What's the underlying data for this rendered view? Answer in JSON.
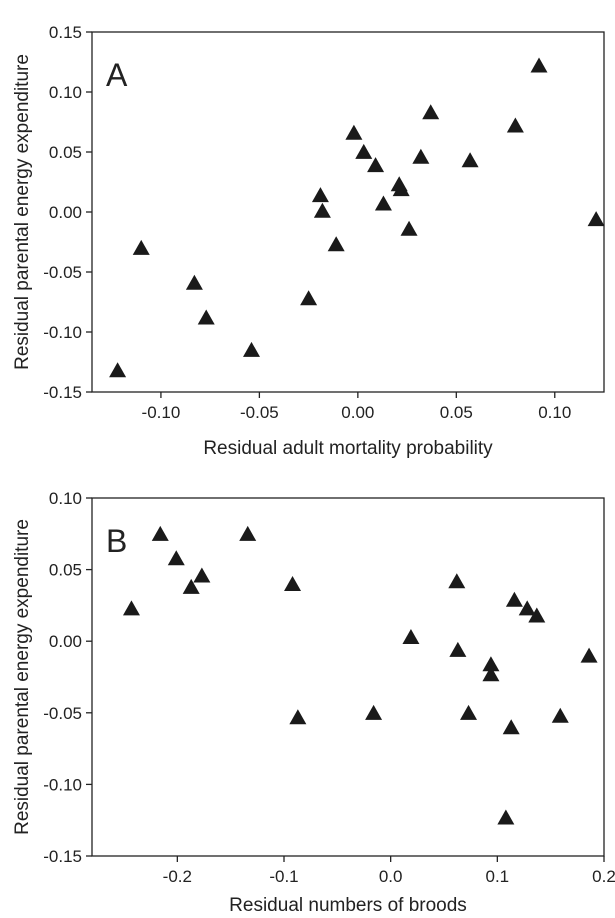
{
  "chart_data": [
    {
      "type": "scatter",
      "panel_label": "A",
      "xlabel": "Residual adult mortality probability",
      "ylabel": "Residual parental energy expenditure",
      "xlim": [
        -0.135,
        0.125
      ],
      "ylim": [
        -0.15,
        0.15
      ],
      "x_ticks": [
        -0.1,
        -0.05,
        0.0,
        0.05,
        0.1
      ],
      "x_tick_labels": [
        "-0.10",
        "-0.05",
        "0.00",
        "0.05",
        "0.10"
      ],
      "y_ticks": [
        -0.15,
        -0.1,
        -0.05,
        0.0,
        0.05,
        0.1,
        0.15
      ],
      "y_tick_labels": [
        "-0.15",
        "-0.10",
        "-0.05",
        "0.00",
        "0.05",
        "0.10",
        "0.15"
      ],
      "marker": "triangle",
      "color": "#1a1a1a",
      "grid": false,
      "points": [
        {
          "x": -0.122,
          "y": -0.133
        },
        {
          "x": -0.11,
          "y": -0.031
        },
        {
          "x": -0.083,
          "y": -0.06
        },
        {
          "x": -0.077,
          "y": -0.089
        },
        {
          "x": -0.054,
          "y": -0.116
        },
        {
          "x": -0.025,
          "y": -0.073
        },
        {
          "x": -0.019,
          "y": 0.013
        },
        {
          "x": -0.018,
          "y": 0.0
        },
        {
          "x": -0.011,
          "y": -0.028
        },
        {
          "x": -0.002,
          "y": 0.065
        },
        {
          "x": 0.003,
          "y": 0.049
        },
        {
          "x": 0.009,
          "y": 0.038
        },
        {
          "x": 0.013,
          "y": 0.006
        },
        {
          "x": 0.021,
          "y": 0.022
        },
        {
          "x": 0.022,
          "y": 0.018
        },
        {
          "x": 0.026,
          "y": -0.015
        },
        {
          "x": 0.032,
          "y": 0.045
        },
        {
          "x": 0.037,
          "y": 0.082
        },
        {
          "x": 0.057,
          "y": 0.042
        },
        {
          "x": 0.08,
          "y": 0.071
        },
        {
          "x": 0.092,
          "y": 0.121
        },
        {
          "x": 0.121,
          "y": -0.007
        }
      ]
    },
    {
      "type": "scatter",
      "panel_label": "B",
      "xlabel": "Residual numbers of broods",
      "ylabel": "Residual parental energy expenditure",
      "xlim": [
        -0.28,
        0.2
      ],
      "ylim": [
        -0.15,
        0.1
      ],
      "x_ticks": [
        -0.2,
        -0.1,
        0.0,
        0.1,
        0.2
      ],
      "x_tick_labels": [
        "-0.2",
        "-0.1",
        "0.0",
        "0.1",
        "0.2"
      ],
      "y_ticks": [
        -0.15,
        -0.1,
        -0.05,
        0.0,
        0.05,
        0.1
      ],
      "y_tick_labels": [
        "-0.15",
        "-0.10",
        "-0.05",
        "0.00",
        "0.05",
        "0.10"
      ],
      "marker": "triangle",
      "color": "#1a1a1a",
      "grid": false,
      "points": [
        {
          "x": -0.243,
          "y": 0.022
        },
        {
          "x": -0.216,
          "y": 0.074
        },
        {
          "x": -0.201,
          "y": 0.057
        },
        {
          "x": -0.187,
          "y": 0.037
        },
        {
          "x": -0.177,
          "y": 0.045
        },
        {
          "x": -0.134,
          "y": 0.074
        },
        {
          "x": -0.092,
          "y": 0.039
        },
        {
          "x": -0.087,
          "y": -0.054
        },
        {
          "x": -0.016,
          "y": -0.051
        },
        {
          "x": 0.019,
          "y": 0.002
        },
        {
          "x": 0.062,
          "y": 0.041
        },
        {
          "x": 0.063,
          "y": -0.007
        },
        {
          "x": 0.073,
          "y": -0.051
        },
        {
          "x": 0.094,
          "y": -0.017
        },
        {
          "x": 0.094,
          "y": -0.024
        },
        {
          "x": 0.108,
          "y": -0.124
        },
        {
          "x": 0.113,
          "y": -0.061
        },
        {
          "x": 0.116,
          "y": 0.028
        },
        {
          "x": 0.128,
          "y": 0.022
        },
        {
          "x": 0.137,
          "y": 0.017
        },
        {
          "x": 0.159,
          "y": -0.053
        },
        {
          "x": 0.186,
          "y": -0.011
        }
      ]
    }
  ]
}
